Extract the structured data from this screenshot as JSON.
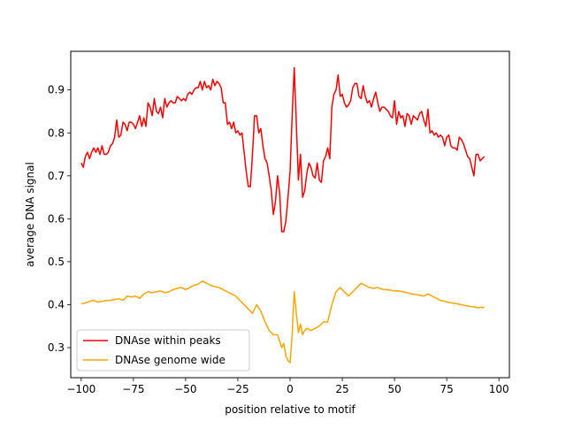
{
  "chart_data": {
    "type": "line",
    "title": "",
    "xlabel": "position relative to motif",
    "ylabel": "average DNA signal",
    "xlim": [
      -105,
      105
    ],
    "ylim": [
      0.23,
      0.99
    ],
    "xticks": [
      -100,
      -75,
      -50,
      -25,
      0,
      25,
      50,
      75,
      100
    ],
    "yticks": [
      0.3,
      0.4,
      0.5,
      0.6,
      0.7,
      0.8,
      0.9
    ],
    "grid": false,
    "legend_position": "lower-left",
    "series": [
      {
        "name": "DNAse within peaks",
        "color": "#ff0000",
        "points": [
          [
            -100,
            0.73
          ],
          [
            -99,
            0.72
          ],
          [
            -98,
            0.745
          ],
          [
            -97,
            0.755
          ],
          [
            -96,
            0.74
          ],
          [
            -95,
            0.755
          ],
          [
            -94,
            0.765
          ],
          [
            -93,
            0.755
          ],
          [
            -92,
            0.765
          ],
          [
            -91,
            0.75
          ],
          [
            -90,
            0.77
          ],
          [
            -89,
            0.75
          ],
          [
            -88,
            0.75
          ],
          [
            -87,
            0.755
          ],
          [
            -86,
            0.77
          ],
          [
            -85,
            0.775
          ],
          [
            -84,
            0.79
          ],
          [
            -83,
            0.83
          ],
          [
            -82,
            0.79
          ],
          [
            -81,
            0.795
          ],
          [
            -80,
            0.825
          ],
          [
            -79,
            0.82
          ],
          [
            -78,
            0.805
          ],
          [
            -77,
            0.825
          ],
          [
            -76,
            0.825
          ],
          [
            -75,
            0.82
          ],
          [
            -74,
            0.81
          ],
          [
            -73,
            0.825
          ],
          [
            -72,
            0.84
          ],
          [
            -71,
            0.815
          ],
          [
            -70,
            0.835
          ],
          [
            -69,
            0.815
          ],
          [
            -68,
            0.87
          ],
          [
            -67,
            0.86
          ],
          [
            -66,
            0.84
          ],
          [
            -65,
            0.88
          ],
          [
            -64,
            0.85
          ],
          [
            -63,
            0.845
          ],
          [
            -62,
            0.86
          ],
          [
            -61,
            0.835
          ],
          [
            -60,
            0.88
          ],
          [
            -59,
            0.86
          ],
          [
            -58,
            0.87
          ],
          [
            -57,
            0.875
          ],
          [
            -56,
            0.87
          ],
          [
            -55,
            0.87
          ],
          [
            -54,
            0.885
          ],
          [
            -53,
            0.88
          ],
          [
            -52,
            0.875
          ],
          [
            -51,
            0.88
          ],
          [
            -50,
            0.875
          ],
          [
            -49,
            0.89
          ],
          [
            -48,
            0.895
          ],
          [
            -47,
            0.89
          ],
          [
            -46,
            0.9
          ],
          [
            -45,
            0.905
          ],
          [
            -44,
            0.905
          ],
          [
            -43,
            0.92
          ],
          [
            -42,
            0.9
          ],
          [
            -41,
            0.92
          ],
          [
            -40,
            0.905
          ],
          [
            -39,
            0.91
          ],
          [
            -38,
            0.9
          ],
          [
            -37,
            0.925
          ],
          [
            -36,
            0.91
          ],
          [
            -35,
            0.92
          ],
          [
            -34,
            0.915
          ],
          [
            -33,
            0.905
          ],
          [
            -32,
            0.87
          ],
          [
            -31,
            0.87
          ],
          [
            -30,
            0.82
          ],
          [
            -29,
            0.825
          ],
          [
            -28,
            0.81
          ],
          [
            -27,
            0.825
          ],
          [
            -26,
            0.8
          ],
          [
            -25,
            0.805
          ],
          [
            -24,
            0.795
          ],
          [
            -23,
            0.8
          ],
          [
            -22,
            0.755
          ],
          [
            -21,
            0.71
          ],
          [
            -20,
            0.675
          ],
          [
            -19,
            0.675
          ],
          [
            -18,
            0.75
          ],
          [
            -17,
            0.84
          ],
          [
            -16,
            0.84
          ],
          [
            -15,
            0.8
          ],
          [
            -14,
            0.81
          ],
          [
            -13,
            0.77
          ],
          [
            -12,
            0.74
          ],
          [
            -11,
            0.73
          ],
          [
            -10,
            0.7
          ],
          [
            -9,
            0.665
          ],
          [
            -8,
            0.61
          ],
          [
            -7,
            0.64
          ],
          [
            -6,
            0.7
          ],
          [
            -5,
            0.66
          ],
          [
            -4,
            0.57
          ],
          [
            -3,
            0.57
          ],
          [
            -2,
            0.595
          ],
          [
            -1,
            0.65
          ],
          [
            0,
            0.71
          ],
          [
            1,
            0.84
          ],
          [
            2,
            0.952
          ],
          [
            3,
            0.82
          ],
          [
            4,
            0.69
          ],
          [
            5,
            0.75
          ],
          [
            6,
            0.65
          ],
          [
            7,
            0.665
          ],
          [
            8,
            0.705
          ],
          [
            9,
            0.73
          ],
          [
            10,
            0.72
          ],
          [
            11,
            0.7
          ],
          [
            12,
            0.695
          ],
          [
            13,
            0.73
          ],
          [
            14,
            0.69
          ],
          [
            15,
            0.685
          ],
          [
            16,
            0.735
          ],
          [
            17,
            0.745
          ],
          [
            18,
            0.765
          ],
          [
            19,
            0.74
          ],
          [
            20,
            0.86
          ],
          [
            21,
            0.89
          ],
          [
            22,
            0.9
          ],
          [
            23,
            0.935
          ],
          [
            24,
            0.885
          ],
          [
            25,
            0.89
          ],
          [
            26,
            0.87
          ],
          [
            27,
            0.86
          ],
          [
            28,
            0.865
          ],
          [
            29,
            0.875
          ],
          [
            30,
            0.905
          ],
          [
            31,
            0.915
          ],
          [
            32,
            0.915
          ],
          [
            33,
            0.885
          ],
          [
            34,
            0.88
          ],
          [
            35,
            0.91
          ],
          [
            36,
            0.885
          ],
          [
            37,
            0.87
          ],
          [
            38,
            0.875
          ],
          [
            39,
            0.86
          ],
          [
            40,
            0.88
          ],
          [
            41,
            0.895
          ],
          [
            42,
            0.87
          ],
          [
            43,
            0.85
          ],
          [
            44,
            0.86
          ],
          [
            45,
            0.86
          ],
          [
            46,
            0.855
          ],
          [
            47,
            0.85
          ],
          [
            48,
            0.84
          ],
          [
            49,
            0.835
          ],
          [
            50,
            0.875
          ],
          [
            51,
            0.82
          ],
          [
            52,
            0.85
          ],
          [
            53,
            0.835
          ],
          [
            54,
            0.84
          ],
          [
            55,
            0.815
          ],
          [
            56,
            0.845
          ],
          [
            57,
            0.84
          ],
          [
            58,
            0.82
          ],
          [
            59,
            0.84
          ],
          [
            60,
            0.835
          ],
          [
            61,
            0.83
          ],
          [
            62,
            0.845
          ],
          [
            63,
            0.85
          ],
          [
            64,
            0.83
          ],
          [
            65,
            0.815
          ],
          [
            66,
            0.855
          ],
          [
            67,
            0.8
          ],
          [
            68,
            0.805
          ],
          [
            69,
            0.795
          ],
          [
            70,
            0.8
          ],
          [
            71,
            0.79
          ],
          [
            72,
            0.795
          ],
          [
            73,
            0.79
          ],
          [
            74,
            0.77
          ],
          [
            75,
            0.79
          ],
          [
            76,
            0.795
          ],
          [
            77,
            0.77
          ],
          [
            78,
            0.765
          ],
          [
            79,
            0.765
          ],
          [
            80,
            0.76
          ],
          [
            81,
            0.79
          ],
          [
            82,
            0.785
          ],
          [
            83,
            0.775
          ],
          [
            84,
            0.76
          ],
          [
            85,
            0.745
          ],
          [
            86,
            0.74
          ],
          [
            87,
            0.72
          ],
          [
            88,
            0.7
          ],
          [
            89,
            0.75
          ],
          [
            90,
            0.75
          ],
          [
            91,
            0.735
          ],
          [
            92,
            0.74
          ],
          [
            93,
            0.745
          ]
        ]
      },
      {
        "name": "DNAse genome wide",
        "color": "#ffa500",
        "points": [
          [
            -100,
            0.402
          ],
          [
            -98,
            0.404
          ],
          [
            -96,
            0.408
          ],
          [
            -94,
            0.41
          ],
          [
            -92,
            0.406
          ],
          [
            -90,
            0.408
          ],
          [
            -88,
            0.41
          ],
          [
            -86,
            0.41
          ],
          [
            -84,
            0.412
          ],
          [
            -82,
            0.414
          ],
          [
            -80,
            0.41
          ],
          [
            -78,
            0.42
          ],
          [
            -76,
            0.418
          ],
          [
            -74,
            0.42
          ],
          [
            -72,
            0.415
          ],
          [
            -70,
            0.425
          ],
          [
            -68,
            0.43
          ],
          [
            -66,
            0.428
          ],
          [
            -64,
            0.43
          ],
          [
            -62,
            0.432
          ],
          [
            -60,
            0.428
          ],
          [
            -58,
            0.43
          ],
          [
            -56,
            0.435
          ],
          [
            -54,
            0.438
          ],
          [
            -52,
            0.44
          ],
          [
            -50,
            0.435
          ],
          [
            -48,
            0.44
          ],
          [
            -46,
            0.445
          ],
          [
            -44,
            0.448
          ],
          [
            -42,
            0.455
          ],
          [
            -40,
            0.45
          ],
          [
            -38,
            0.445
          ],
          [
            -36,
            0.442
          ],
          [
            -34,
            0.44
          ],
          [
            -32,
            0.435
          ],
          [
            -30,
            0.43
          ],
          [
            -28,
            0.425
          ],
          [
            -26,
            0.42
          ],
          [
            -24,
            0.41
          ],
          [
            -22,
            0.4
          ],
          [
            -20,
            0.39
          ],
          [
            -18,
            0.38
          ],
          [
            -16,
            0.4
          ],
          [
            -14,
            0.385
          ],
          [
            -12,
            0.36
          ],
          [
            -10,
            0.34
          ],
          [
            -8,
            0.33
          ],
          [
            -6,
            0.33
          ],
          [
            -4,
            0.3
          ],
          [
            -3,
            0.31
          ],
          [
            -2,
            0.28
          ],
          [
            -1,
            0.27
          ],
          [
            0,
            0.265
          ],
          [
            1,
            0.33
          ],
          [
            2,
            0.43
          ],
          [
            3,
            0.38
          ],
          [
            4,
            0.335
          ],
          [
            5,
            0.355
          ],
          [
            6,
            0.33
          ],
          [
            7,
            0.34
          ],
          [
            8,
            0.345
          ],
          [
            10,
            0.34
          ],
          [
            12,
            0.345
          ],
          [
            14,
            0.35
          ],
          [
            16,
            0.36
          ],
          [
            18,
            0.36
          ],
          [
            20,
            0.4
          ],
          [
            22,
            0.43
          ],
          [
            24,
            0.44
          ],
          [
            26,
            0.43
          ],
          [
            28,
            0.42
          ],
          [
            30,
            0.43
          ],
          [
            32,
            0.44
          ],
          [
            34,
            0.45
          ],
          [
            36,
            0.445
          ],
          [
            38,
            0.44
          ],
          [
            40,
            0.438
          ],
          [
            42,
            0.44
          ],
          [
            44,
            0.436
          ],
          [
            46,
            0.435
          ],
          [
            48,
            0.434
          ],
          [
            50,
            0.432
          ],
          [
            52,
            0.432
          ],
          [
            54,
            0.43
          ],
          [
            56,
            0.428
          ],
          [
            58,
            0.425
          ],
          [
            60,
            0.424
          ],
          [
            62,
            0.422
          ],
          [
            64,
            0.42
          ],
          [
            66,
            0.425
          ],
          [
            68,
            0.42
          ],
          [
            70,
            0.415
          ],
          [
            72,
            0.41
          ],
          [
            74,
            0.408
          ],
          [
            76,
            0.405
          ],
          [
            78,
            0.404
          ],
          [
            80,
            0.402
          ],
          [
            82,
            0.4
          ],
          [
            84,
            0.398
          ],
          [
            86,
            0.396
          ],
          [
            88,
            0.395
          ],
          [
            90,
            0.393
          ],
          [
            92,
            0.394
          ],
          [
            93,
            0.393
          ]
        ]
      }
    ]
  }
}
